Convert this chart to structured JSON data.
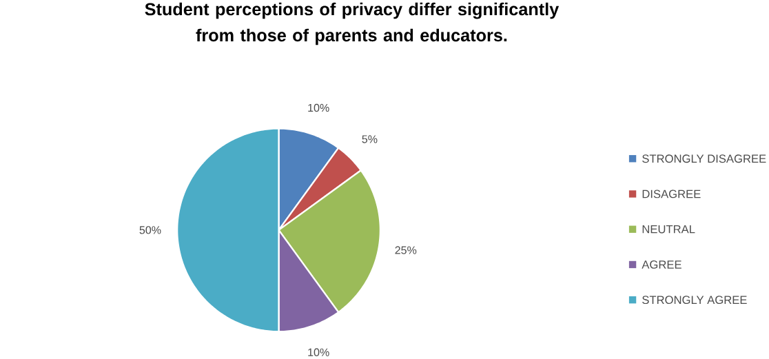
{
  "chart_data": {
    "type": "pie",
    "title": "Student perceptions of privacy differ significantly from those of parents and educators.",
    "categories": [
      "STRONGLY DISAGREE",
      "DISAGREE",
      "NEUTRAL",
      "AGREE",
      "STRONGLY AGREE"
    ],
    "values": [
      10,
      5,
      25,
      10,
      50
    ],
    "value_labels": [
      "10%",
      "5%",
      "25%",
      "10%",
      "50%"
    ],
    "colors": [
      "#4f81bd",
      "#c0504d",
      "#9bbb59",
      "#8064a2",
      "#4bacc6"
    ],
    "legend": "right"
  }
}
